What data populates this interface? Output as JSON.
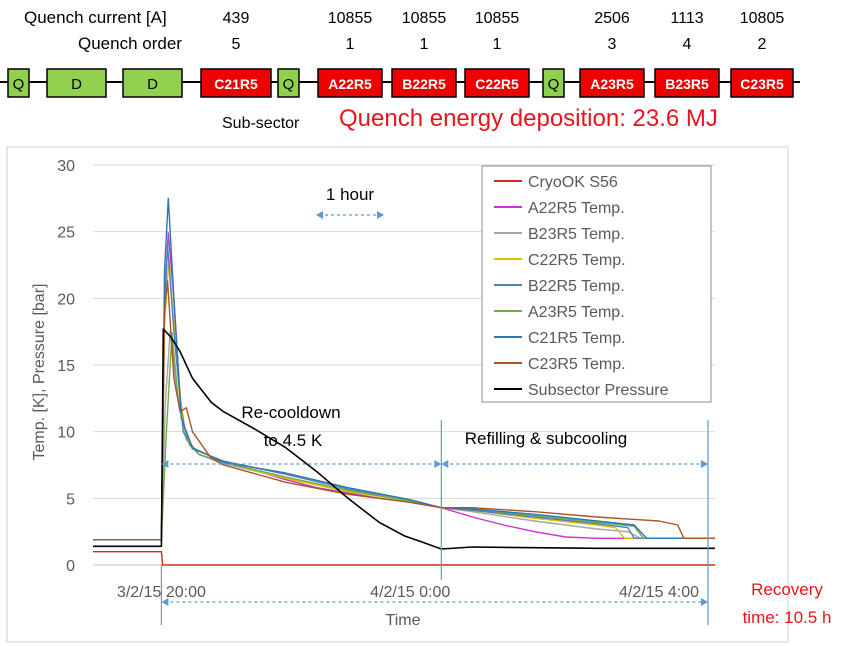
{
  "header": {
    "current_label": "Quench current [A]",
    "order_label": "Quench order",
    "subsector_label": "Sub-sector",
    "energy_text": "Quench energy deposition: 23.6 MJ"
  },
  "magnet_chain": [
    {
      "type": "Q",
      "label": "Q",
      "current": "",
      "order": ""
    },
    {
      "type": "D",
      "label": "D",
      "current": "",
      "order": ""
    },
    {
      "type": "D",
      "label": "D",
      "current": "",
      "order": ""
    },
    {
      "type": "cell",
      "label": "C21R5",
      "current": "439",
      "order": "5"
    },
    {
      "type": "Q",
      "label": "Q",
      "current": "",
      "order": ""
    },
    {
      "type": "cell",
      "label": "A22R5",
      "current": "10855",
      "order": "1"
    },
    {
      "type": "cell",
      "label": "B22R5",
      "current": "10855",
      "order": "1"
    },
    {
      "type": "cell",
      "label": "C22R5",
      "current": "10855",
      "order": "1"
    },
    {
      "type": "Q",
      "label": "Q",
      "current": "",
      "order": ""
    },
    {
      "type": "cell",
      "label": "A23R5",
      "current": "2506",
      "order": "3"
    },
    {
      "type": "cell",
      "label": "B23R5",
      "current": "1113",
      "order": "4"
    },
    {
      "type": "cell",
      "label": "C23R5",
      "current": "10805",
      "order": "2"
    }
  ],
  "colors": {
    "quad_fill": "#8fd14f",
    "dipole_fill": "#92d050",
    "cell_fill": "#ee0000",
    "energy_text": "#e8141c",
    "annotation_arrow": "#5b9bd5",
    "recovery_text": "#e8141c"
  },
  "chart_data": {
    "type": "line",
    "title": "",
    "xlabel": "Time",
    "ylabel": "Temp. [K], Pressure [bar]",
    "x_unit": "hours since 3/2/15 20:00",
    "xlim": [
      -1.1,
      8.9
    ],
    "ylim": [
      0,
      30
    ],
    "y_ticks": [
      0,
      5,
      10,
      15,
      20,
      25,
      30
    ],
    "x_ticks": [
      {
        "x": 0,
        "label": "3/2/15 20:00"
      },
      {
        "x": 4,
        "label": "4/2/15 0:00"
      },
      {
        "x": 8,
        "label": "4/2/15 4:00"
      }
    ],
    "grid": "horizontal",
    "legend_position": "top-right",
    "series": [
      {
        "name": "CryoOK S56",
        "color": "#d9261c",
        "points": [
          [
            -1.1,
            1.0
          ],
          [
            0.0,
            1.0
          ],
          [
            0.02,
            0.0
          ],
          [
            8.9,
            0.0
          ]
        ]
      },
      {
        "name": "A22R5 Temp.",
        "color": "#cc33cc",
        "points": [
          [
            -1.1,
            1.9
          ],
          [
            0.0,
            1.9
          ],
          [
            0.05,
            20.0
          ],
          [
            0.11,
            24.9
          ],
          [
            0.2,
            20.0
          ],
          [
            0.3,
            12.5
          ],
          [
            0.4,
            9.5
          ],
          [
            0.6,
            8.3
          ],
          [
            1.0,
            7.6
          ],
          [
            1.5,
            7.1
          ],
          [
            2.0,
            6.4
          ],
          [
            2.5,
            5.8
          ],
          [
            3.0,
            5.4
          ],
          [
            3.5,
            5.0
          ],
          [
            4.0,
            4.7
          ],
          [
            4.5,
            4.3
          ],
          [
            5.0,
            3.6
          ],
          [
            5.5,
            3.0
          ],
          [
            6.0,
            2.5
          ],
          [
            6.5,
            2.1
          ],
          [
            7.0,
            2.0
          ],
          [
            8.9,
            2.0
          ]
        ]
      },
      {
        "name": "B23R5 Temp.",
        "color": "#a5a5a5",
        "points": [
          [
            -1.1,
            1.9
          ],
          [
            0.0,
            1.9
          ],
          [
            0.06,
            12.0
          ],
          [
            0.14,
            17.5
          ],
          [
            0.25,
            13.0
          ],
          [
            0.4,
            9.4
          ],
          [
            0.6,
            8.3
          ],
          [
            1.0,
            7.6
          ],
          [
            2.0,
            6.5
          ],
          [
            3.0,
            5.5
          ],
          [
            4.0,
            4.8
          ],
          [
            4.5,
            4.3
          ],
          [
            5.0,
            4.0
          ],
          [
            6.0,
            3.3
          ],
          [
            7.0,
            2.7
          ],
          [
            7.5,
            2.5
          ],
          [
            7.7,
            2.0
          ],
          [
            8.9,
            2.0
          ]
        ]
      },
      {
        "name": "C22R5 Temp.",
        "color": "#ddc000",
        "points": [
          [
            -1.1,
            1.9
          ],
          [
            0.0,
            1.9
          ],
          [
            0.05,
            18.0
          ],
          [
            0.12,
            23.0
          ],
          [
            0.22,
            17.0
          ],
          [
            0.35,
            10.5
          ],
          [
            0.5,
            8.8
          ],
          [
            1.0,
            7.7
          ],
          [
            2.0,
            6.5
          ],
          [
            3.0,
            5.5
          ],
          [
            4.0,
            4.8
          ],
          [
            4.5,
            4.3
          ],
          [
            5.0,
            4.1
          ],
          [
            6.0,
            3.5
          ],
          [
            7.0,
            3.0
          ],
          [
            7.3,
            2.8
          ],
          [
            7.45,
            2.0
          ],
          [
            8.9,
            2.0
          ]
        ]
      },
      {
        "name": "B22R5 Temp.",
        "color": "#4f81bd",
        "points": [
          [
            -1.1,
            1.9
          ],
          [
            0.0,
            1.9
          ],
          [
            0.05,
            19.0
          ],
          [
            0.1,
            24.0
          ],
          [
            0.2,
            17.5
          ],
          [
            0.35,
            10.0
          ],
          [
            0.5,
            8.7
          ],
          [
            1.0,
            7.8
          ],
          [
            2.0,
            6.8
          ],
          [
            3.0,
            5.7
          ],
          [
            4.0,
            4.8
          ],
          [
            4.5,
            4.3
          ],
          [
            5.0,
            4.1
          ],
          [
            6.0,
            3.6
          ],
          [
            7.0,
            3.1
          ],
          [
            7.5,
            2.8
          ],
          [
            7.6,
            2.0
          ],
          [
            8.9,
            2.0
          ]
        ]
      },
      {
        "name": "A23R5 Temp.",
        "color": "#70ad47",
        "points": [
          [
            -1.1,
            1.9
          ],
          [
            0.0,
            1.9
          ],
          [
            0.08,
            10.0
          ],
          [
            0.17,
            17.4
          ],
          [
            0.28,
            12.0
          ],
          [
            0.45,
            9.0
          ],
          [
            0.6,
            8.3
          ],
          [
            1.0,
            7.7
          ],
          [
            2.0,
            6.6
          ],
          [
            3.0,
            5.6
          ],
          [
            4.0,
            4.8
          ],
          [
            4.5,
            4.3
          ],
          [
            5.0,
            4.2
          ],
          [
            6.0,
            3.7
          ],
          [
            7.0,
            3.2
          ],
          [
            7.6,
            2.9
          ],
          [
            7.75,
            2.0
          ],
          [
            8.9,
            2.0
          ]
        ]
      },
      {
        "name": "C21R5 Temp.",
        "color": "#2e75b6",
        "points": [
          [
            -1.1,
            1.9
          ],
          [
            0.0,
            1.9
          ],
          [
            0.05,
            22.0
          ],
          [
            0.11,
            27.5
          ],
          [
            0.2,
            20.0
          ],
          [
            0.32,
            11.0
          ],
          [
            0.5,
            8.8
          ],
          [
            1.0,
            7.7
          ],
          [
            2.0,
            6.9
          ],
          [
            3.0,
            5.8
          ],
          [
            4.0,
            4.9
          ],
          [
            4.5,
            4.3
          ],
          [
            5.0,
            4.2
          ],
          [
            6.0,
            3.8
          ],
          [
            7.0,
            3.3
          ],
          [
            7.6,
            3.0
          ],
          [
            7.8,
            2.0
          ],
          [
            8.9,
            2.0
          ]
        ]
      },
      {
        "name": "C23R5 Temp.",
        "color": "#a5572a",
        "points": [
          [
            -1.1,
            1.9
          ],
          [
            0.0,
            1.9
          ],
          [
            0.05,
            19.0
          ],
          [
            0.1,
            21.3
          ],
          [
            0.2,
            14.0
          ],
          [
            0.3,
            11.5
          ],
          [
            0.4,
            11.8
          ],
          [
            0.5,
            10.0
          ],
          [
            0.8,
            8.0
          ],
          [
            1.0,
            7.5
          ],
          [
            2.0,
            6.2
          ],
          [
            3.0,
            5.3
          ],
          [
            4.0,
            4.7
          ],
          [
            4.5,
            4.3
          ],
          [
            5.0,
            4.3
          ],
          [
            6.0,
            4.0
          ],
          [
            7.0,
            3.6
          ],
          [
            8.0,
            3.3
          ],
          [
            8.3,
            3.0
          ],
          [
            8.4,
            2.0
          ],
          [
            8.9,
            2.0
          ]
        ]
      },
      {
        "name": "Subsector Pressure",
        "color": "#000000",
        "points": [
          [
            -1.1,
            1.4
          ],
          [
            0.0,
            1.4
          ],
          [
            0.03,
            17.7
          ],
          [
            0.15,
            17.1
          ],
          [
            0.3,
            16.0
          ],
          [
            0.5,
            14.0
          ],
          [
            0.8,
            12.2
          ],
          [
            1.0,
            11.5
          ],
          [
            1.5,
            10.2
          ],
          [
            2.0,
            8.8
          ],
          [
            2.5,
            7.0
          ],
          [
            3.0,
            5.0
          ],
          [
            3.5,
            3.2
          ],
          [
            3.9,
            2.2
          ],
          [
            4.2,
            1.7
          ],
          [
            4.5,
            1.2
          ],
          [
            5.0,
            1.35
          ],
          [
            6.0,
            1.3
          ],
          [
            7.0,
            1.25
          ],
          [
            8.9,
            1.25
          ]
        ]
      }
    ],
    "annotations": {
      "one_hour": "1 hour",
      "recooldown_line1": "Re-cooldown",
      "recooldown_line2": "to 4.5 K",
      "refilling": "Refilling & subcooling",
      "recovery_line1": "Recovery",
      "recovery_line2": "time: 10.5 h"
    }
  }
}
